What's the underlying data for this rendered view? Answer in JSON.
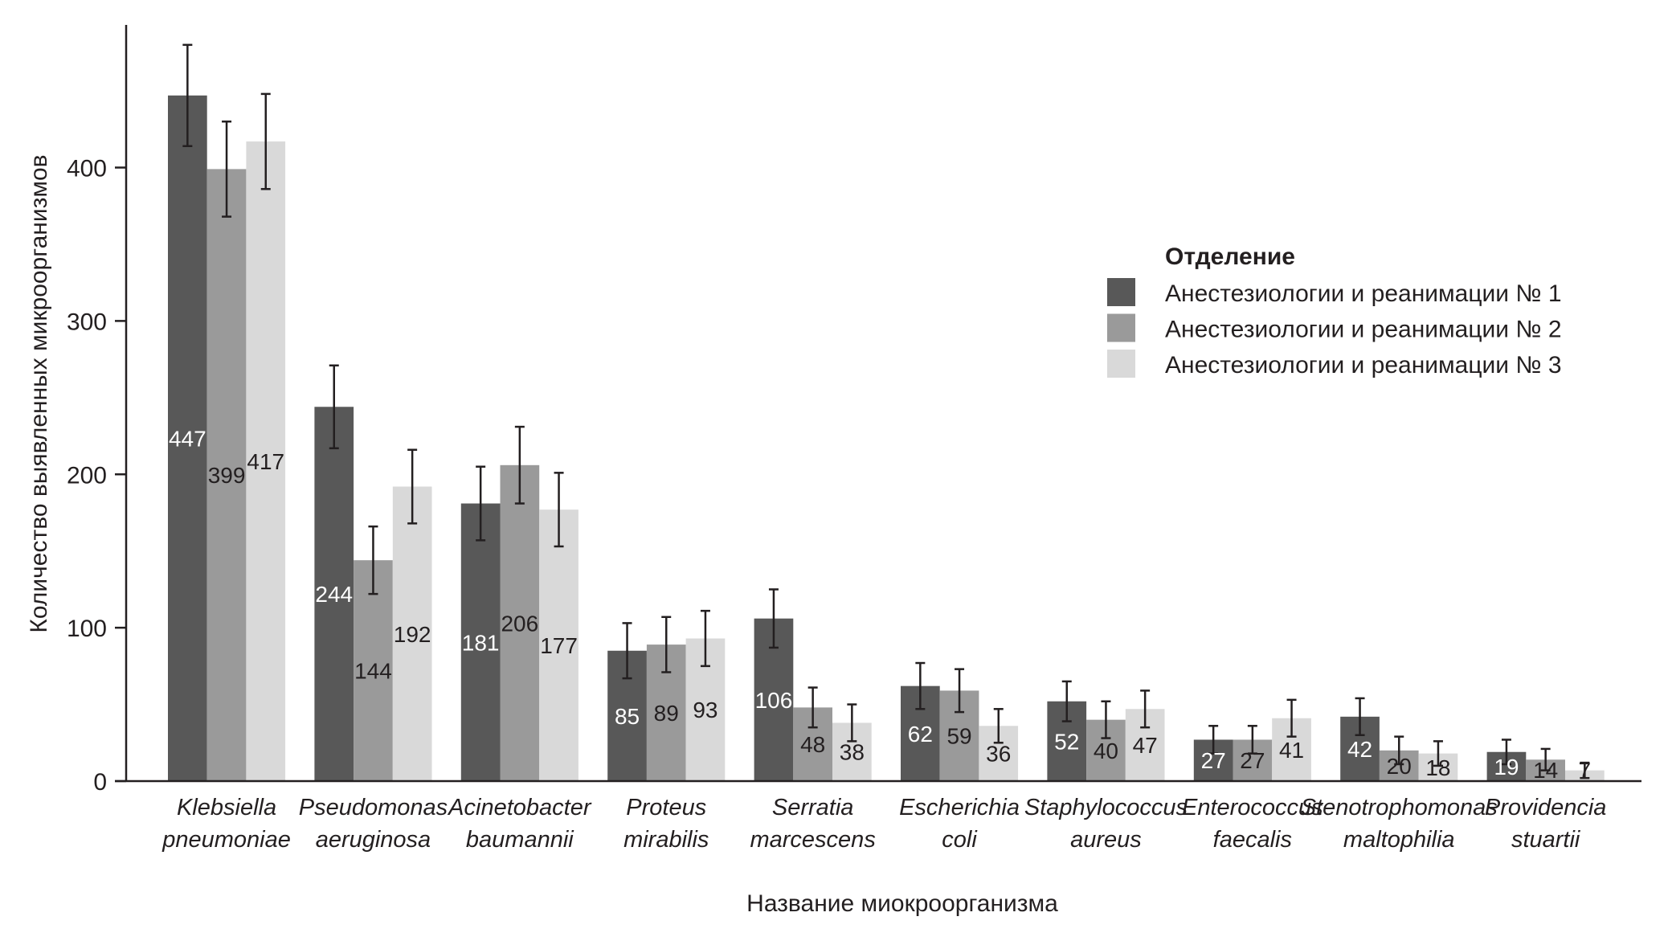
{
  "chart_data": {
    "type": "bar",
    "title": "",
    "xlabel": "Название миокроорганизма",
    "ylabel": "Количество выявленных микроорганизмов",
    "ylim": [
      0,
      493
    ],
    "yticks": [
      0,
      100,
      200,
      300,
      400
    ],
    "grid": false,
    "legend": {
      "title": "Отделение",
      "placement": "right"
    },
    "categories": [
      [
        "Klebsiella",
        "pneumoniae"
      ],
      [
        "Pseudomonas",
        "aeruginosa"
      ],
      [
        "Acinetobacter",
        "baumannii"
      ],
      [
        "Proteus",
        "mirabilis"
      ],
      [
        "Serratia",
        "marcescens"
      ],
      [
        "Escherichia",
        "coli"
      ],
      [
        "Staphylococcus",
        "aureus"
      ],
      [
        "Enterococcus",
        "faecalis"
      ],
      [
        "Stenotrophomonas",
        "maltophilia"
      ],
      [
        "Providencia",
        "stuartii"
      ]
    ],
    "series": [
      {
        "name": "Анестезиологии и реанимации № 1",
        "color": "#585858",
        "label_color": "#ffffff",
        "values": [
          447,
          244,
          181,
          85,
          106,
          62,
          52,
          27,
          42,
          19
        ],
        "errors": [
          33,
          27,
          24,
          18,
          19,
          15,
          13,
          9,
          12,
          8
        ]
      },
      {
        "name": "Анестезиологии и реанимации № 2",
        "color": "#9a9a9a",
        "label_color": "#231f20",
        "values": [
          399,
          144,
          206,
          89,
          48,
          59,
          40,
          27,
          20,
          14
        ],
        "errors": [
          31,
          22,
          25,
          18,
          13,
          14,
          12,
          9,
          9,
          7
        ]
      },
      {
        "name": "Анестезиологии и реанимации № 3",
        "color": "#d9d9d9",
        "label_color": "#231f20",
        "values": [
          417,
          192,
          177,
          93,
          38,
          36,
          47,
          41,
          18,
          7
        ],
        "errors": [
          31,
          24,
          24,
          18,
          12,
          11,
          12,
          12,
          8,
          5
        ]
      }
    ]
  }
}
